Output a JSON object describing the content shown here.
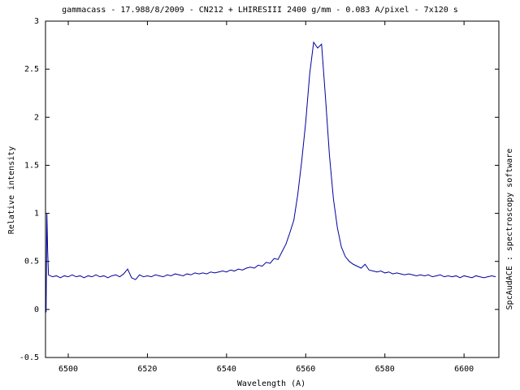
{
  "chart_data": {
    "type": "line",
    "title": "gammacass - 17.988/8/2009 - CN212 + LHIRESIII 2400 g/mm - 0.083 A/pixel - 7x120 s",
    "xlabel": "Wavelength (A)",
    "ylabel": "Relative intensity",
    "side_label": "SpcAudACE : spectroscopy software",
    "color": "#0000a0",
    "xlim": [
      6494.25,
      6608.8
    ],
    "ylim": [
      -0.5,
      3
    ],
    "xticks": [
      6500,
      6520,
      6540,
      6560,
      6580,
      6600
    ],
    "yticks": [
      -0.5,
      0,
      0.5,
      1,
      1.5,
      2,
      2.5,
      3
    ],
    "x": [
      6494.4,
      6494.6,
      6494.8,
      6495,
      6496,
      6497,
      6498,
      6499,
      6500,
      6501,
      6502,
      6503,
      6504,
      6505,
      6506,
      6507,
      6508,
      6509,
      6510,
      6511,
      6512,
      6513,
      6514,
      6515,
      6516,
      6517,
      6518,
      6519,
      6520,
      6521,
      6522,
      6523,
      6524,
      6525,
      6526,
      6527,
      6528,
      6529,
      6530,
      6531,
      6532,
      6533,
      6534,
      6535,
      6536,
      6537,
      6538,
      6539,
      6540,
      6541,
      6542,
      6543,
      6544,
      6545,
      6546,
      6547,
      6548,
      6549,
      6550,
      6551,
      6552,
      6553,
      6554,
      6555,
      6556,
      6557,
      6558,
      6559,
      6560,
      6561,
      6562,
      6563,
      6564,
      6565,
      6566,
      6567,
      6568,
      6569,
      6570,
      6571,
      6572,
      6573,
      6574,
      6575,
      6576,
      6577,
      6578,
      6579,
      6580,
      6581,
      6582,
      6583,
      6584,
      6585,
      6586,
      6587,
      6588,
      6589,
      6590,
      6591,
      6592,
      6593,
      6594,
      6595,
      6596,
      6597,
      6598,
      6599,
      6600,
      6601,
      6602,
      6603,
      6604,
      6605,
      6606,
      6607,
      6608
    ],
    "values": [
      -0.03,
      1.0,
      0.6,
      0.36,
      0.34,
      0.35,
      0.33,
      0.35,
      0.34,
      0.36,
      0.34,
      0.35,
      0.33,
      0.35,
      0.34,
      0.36,
      0.34,
      0.35,
      0.33,
      0.35,
      0.36,
      0.34,
      0.37,
      0.42,
      0.33,
      0.31,
      0.36,
      0.34,
      0.35,
      0.34,
      0.36,
      0.35,
      0.34,
      0.36,
      0.35,
      0.37,
      0.36,
      0.35,
      0.37,
      0.36,
      0.38,
      0.37,
      0.38,
      0.37,
      0.39,
      0.38,
      0.39,
      0.4,
      0.39,
      0.41,
      0.4,
      0.42,
      0.41,
      0.43,
      0.44,
      0.43,
      0.46,
      0.45,
      0.49,
      0.48,
      0.53,
      0.52,
      0.6,
      0.68,
      0.8,
      0.93,
      1.2,
      1.55,
      1.95,
      2.45,
      2.78,
      2.72,
      2.76,
      2.2,
      1.6,
      1.15,
      0.85,
      0.65,
      0.55,
      0.5,
      0.47,
      0.45,
      0.43,
      0.47,
      0.41,
      0.4,
      0.39,
      0.4,
      0.38,
      0.39,
      0.37,
      0.38,
      0.37,
      0.36,
      0.37,
      0.36,
      0.35,
      0.36,
      0.35,
      0.36,
      0.34,
      0.35,
      0.36,
      0.34,
      0.35,
      0.34,
      0.35,
      0.33,
      0.35,
      0.34,
      0.33,
      0.35,
      0.34,
      0.33,
      0.34,
      0.35,
      0.34
    ]
  }
}
